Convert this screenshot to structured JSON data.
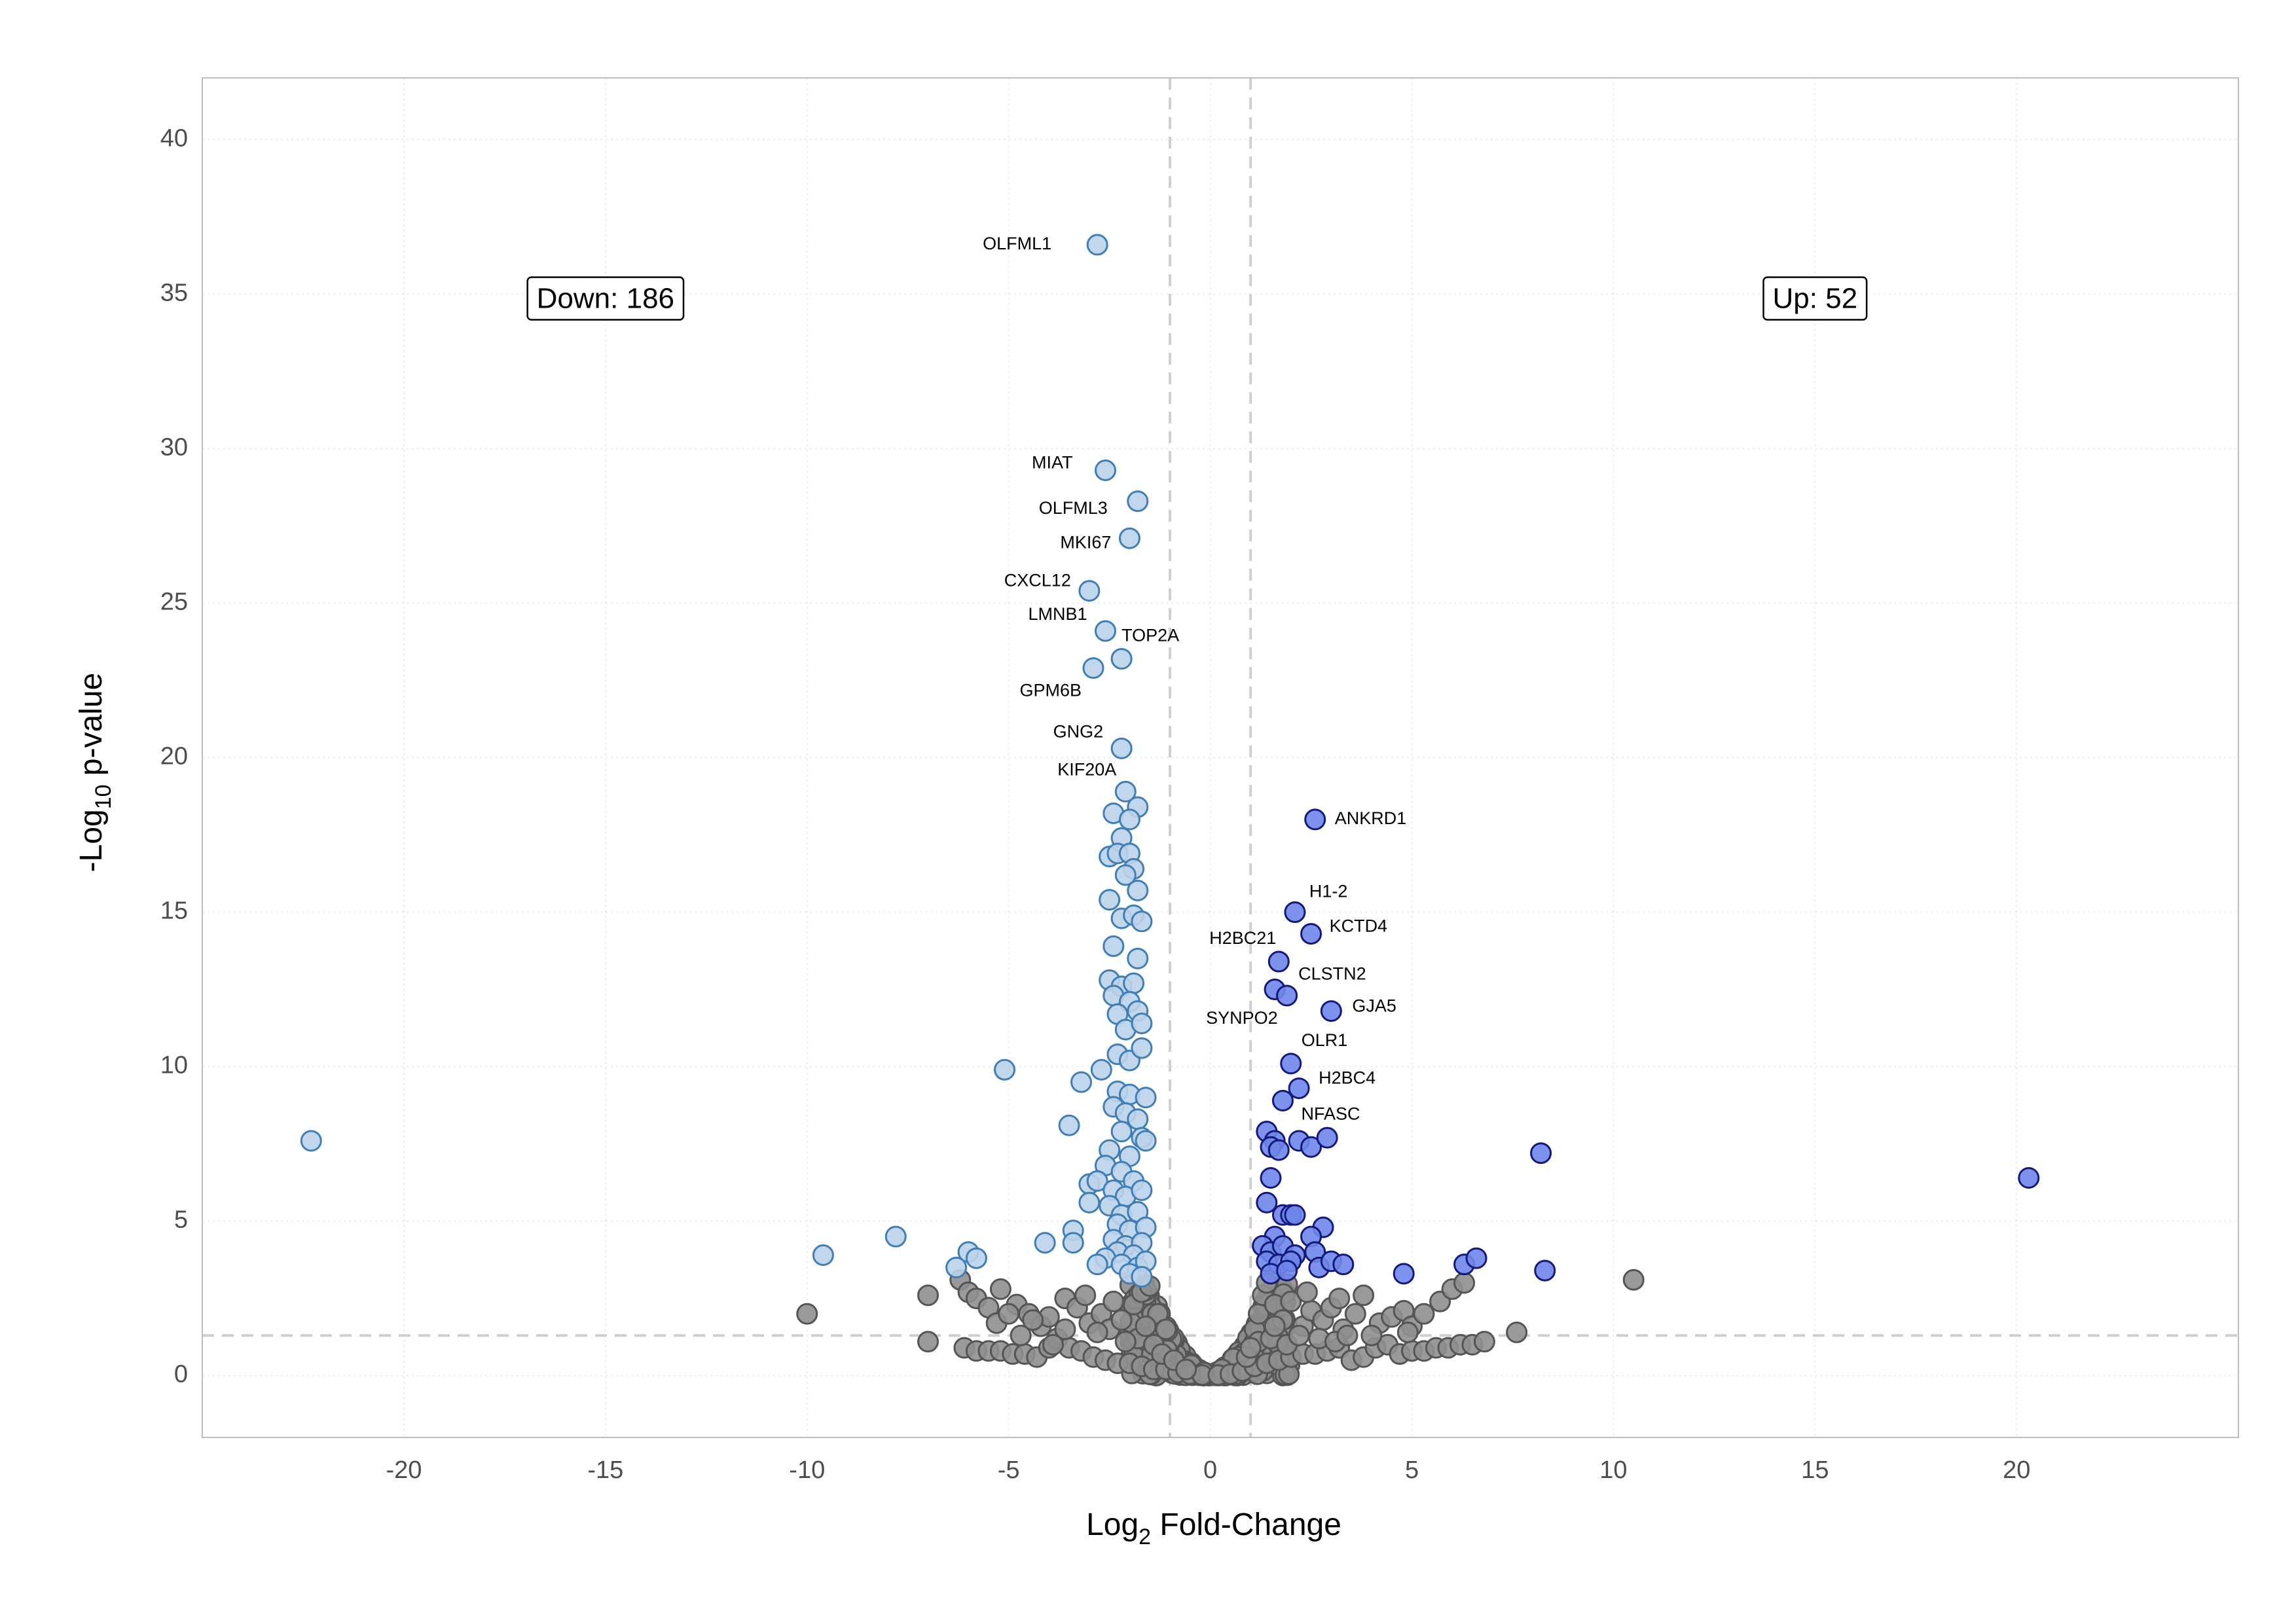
{
  "chart_data": {
    "type": "scatter",
    "xlabel_main": "Log",
    "xlabel_sub": "2",
    "xlabel_rest": " Fold-Change",
    "ylabel_pre": "-Log",
    "ylabel_sub": "10",
    "ylabel_rest": " p-value",
    "xlim": [
      -25,
      25.5
    ],
    "ylim": [
      -2,
      42
    ],
    "xticks": [
      -20,
      -15,
      -10,
      -5,
      0,
      5,
      10,
      15,
      20
    ],
    "yticks": [
      0,
      5,
      10,
      15,
      20,
      25,
      30,
      35,
      40
    ],
    "grid": true,
    "thresholds": {
      "log2fc": [
        -1,
        1
      ],
      "neglog10p": 1.3
    },
    "colors": {
      "down": "#bcd3ea",
      "down_stroke": "#3f7fb5",
      "up": "#6f86ea",
      "up_stroke": "#14197a",
      "ns": "#8f8f8f",
      "ns_stroke": "#555555",
      "grid": "#ebebeb",
      "threshold": "#cfcfcf",
      "panel_border": "#bdbdbd"
    },
    "counts": {
      "down": "Down: 186",
      "up": "Up: 52"
    },
    "down_points": [
      [
        -2.8,
        36.6
      ],
      [
        -2.6,
        29.3
      ],
      [
        -1.8,
        28.3
      ],
      [
        -2.0,
        27.1
      ],
      [
        -3.0,
        25.4
      ],
      [
        -2.6,
        24.1
      ],
      [
        -2.2,
        23.2
      ],
      [
        -2.9,
        22.9
      ],
      [
        -2.2,
        20.3
      ],
      [
        -2.1,
        18.9
      ],
      [
        -2.4,
        18.2
      ],
      [
        -1.8,
        18.4
      ],
      [
        -2.0,
        18.0
      ],
      [
        -2.2,
        17.4
      ],
      [
        -2.5,
        16.8
      ],
      [
        -2.3,
        16.9
      ],
      [
        -2.0,
        16.9
      ],
      [
        -1.9,
        16.4
      ],
      [
        -2.1,
        16.2
      ],
      [
        -1.8,
        15.7
      ],
      [
        -2.5,
        15.4
      ],
      [
        -2.2,
        14.8
      ],
      [
        -1.9,
        14.9
      ],
      [
        -1.7,
        14.7
      ],
      [
        -2.4,
        13.9
      ],
      [
        -1.8,
        13.5
      ],
      [
        -2.5,
        12.8
      ],
      [
        -2.2,
        12.6
      ],
      [
        -1.9,
        12.7
      ],
      [
        -2.4,
        12.3
      ],
      [
        -2.0,
        12.1
      ],
      [
        -2.3,
        11.7
      ],
      [
        -1.8,
        11.8
      ],
      [
        -2.1,
        11.2
      ],
      [
        -1.7,
        11.4
      ],
      [
        -2.3,
        10.4
      ],
      [
        -2.0,
        10.2
      ],
      [
        -1.7,
        10.6
      ],
      [
        -2.7,
        9.9
      ],
      [
        -5.1,
        9.9
      ],
      [
        -3.2,
        9.5
      ],
      [
        -2.3,
        9.2
      ],
      [
        -2.0,
        9.1
      ],
      [
        -1.6,
        9.0
      ],
      [
        -2.4,
        8.7
      ],
      [
        -2.1,
        8.5
      ],
      [
        -1.8,
        8.3
      ],
      [
        -3.5,
        8.1
      ],
      [
        -2.2,
        7.9
      ],
      [
        -1.7,
        7.7
      ],
      [
        -2.5,
        7.3
      ],
      [
        -2.0,
        7.1
      ],
      [
        -1.6,
        7.6
      ],
      [
        -2.6,
        6.8
      ],
      [
        -2.2,
        6.6
      ],
      [
        -1.9,
        6.3
      ],
      [
        -3.0,
        6.2
      ],
      [
        -2.8,
        6.3
      ],
      [
        -2.4,
        6.0
      ],
      [
        -2.1,
        5.8
      ],
      [
        -1.7,
        6.0
      ],
      [
        -3.0,
        5.6
      ],
      [
        -2.5,
        5.5
      ],
      [
        -2.2,
        5.2
      ],
      [
        -1.8,
        5.3
      ],
      [
        -2.3,
        4.9
      ],
      [
        -2.0,
        4.7
      ],
      [
        -1.6,
        4.8
      ],
      [
        -3.4,
        4.7
      ],
      [
        -2.4,
        4.4
      ],
      [
        -2.1,
        4.2
      ],
      [
        -1.7,
        4.3
      ],
      [
        -4.1,
        4.3
      ],
      [
        -3.4,
        4.3
      ],
      [
        -2.3,
        4.0
      ],
      [
        -1.9,
        3.9
      ],
      [
        -2.6,
        3.8
      ],
      [
        -2.8,
        3.6
      ],
      [
        -2.2,
        3.6
      ],
      [
        -1.8,
        3.5
      ],
      [
        -1.6,
        3.7
      ],
      [
        -2.0,
        3.3
      ],
      [
        -1.7,
        3.2
      ],
      [
        -22.3,
        7.6
      ],
      [
        -7.8,
        4.5
      ],
      [
        -9.6,
        3.9
      ],
      [
        -6.0,
        4.0
      ],
      [
        -5.8,
        3.8
      ],
      [
        -6.3,
        3.5
      ]
    ],
    "up_points": [
      [
        2.6,
        18.0
      ],
      [
        2.1,
        15.0
      ],
      [
        2.5,
        14.3
      ],
      [
        1.7,
        13.4
      ],
      [
        1.6,
        12.5
      ],
      [
        1.9,
        12.3
      ],
      [
        3.0,
        11.8
      ],
      [
        2.0,
        10.1
      ],
      [
        2.2,
        9.3
      ],
      [
        1.8,
        8.9
      ],
      [
        1.4,
        7.9
      ],
      [
        1.6,
        7.6
      ],
      [
        1.5,
        7.4
      ],
      [
        1.7,
        7.3
      ],
      [
        2.2,
        7.6
      ],
      [
        2.5,
        7.4
      ],
      [
        2.9,
        7.7
      ],
      [
        1.5,
        6.4
      ],
      [
        1.4,
        5.6
      ],
      [
        1.8,
        5.2
      ],
      [
        2.0,
        5.2
      ],
      [
        2.1,
        5.2
      ],
      [
        2.8,
        4.8
      ],
      [
        1.6,
        4.5
      ],
      [
        2.5,
        4.5
      ],
      [
        1.3,
        4.2
      ],
      [
        1.5,
        4.0
      ],
      [
        1.8,
        4.2
      ],
      [
        2.1,
        3.9
      ],
      [
        1.4,
        3.7
      ],
      [
        1.7,
        3.6
      ],
      [
        2.0,
        3.7
      ],
      [
        2.6,
        4.0
      ],
      [
        2.7,
        3.5
      ],
      [
        3.0,
        3.7
      ],
      [
        3.3,
        3.6
      ],
      [
        1.5,
        3.3
      ],
      [
        1.9,
        3.4
      ],
      [
        4.8,
        3.3
      ],
      [
        6.3,
        3.6
      ],
      [
        6.6,
        3.8
      ],
      [
        8.2,
        7.2
      ],
      [
        8.3,
        3.4
      ],
      [
        20.3,
        6.4
      ]
    ],
    "ns_points": [
      [
        -10.0,
        2.0
      ],
      [
        -7.0,
        2.6
      ],
      [
        -7.0,
        1.1
      ],
      [
        -6.2,
        3.1
      ],
      [
        -6.0,
        2.7
      ],
      [
        -5.8,
        2.5
      ],
      [
        -5.2,
        2.8
      ],
      [
        -5.5,
        2.2
      ],
      [
        -4.8,
        2.3
      ],
      [
        -4.5,
        2.0
      ],
      [
        -4.2,
        1.6
      ],
      [
        -4.0,
        1.9
      ],
      [
        -3.6,
        2.5
      ],
      [
        -3.3,
        2.2
      ],
      [
        -3.0,
        1.7
      ],
      [
        -2.7,
        2.0
      ],
      [
        -2.5,
        1.5
      ],
      [
        -2.2,
        1.8
      ],
      [
        -1.9,
        2.3
      ],
      [
        -1.7,
        2.7
      ],
      [
        -1.5,
        2.9
      ],
      [
        -1.3,
        2.0
      ],
      [
        -1.1,
        1.5
      ],
      [
        -6.1,
        0.9
      ],
      [
        -5.8,
        0.8
      ],
      [
        -5.5,
        0.8
      ],
      [
        -5.2,
        0.8
      ],
      [
        -4.9,
        0.7
      ],
      [
        -4.6,
        0.7
      ],
      [
        -4.3,
        0.6
      ],
      [
        -4.0,
        0.9
      ],
      [
        -3.8,
        1.2
      ],
      [
        -3.5,
        0.9
      ],
      [
        -3.2,
        0.8
      ],
      [
        -2.9,
        0.6
      ],
      [
        -2.6,
        0.5
      ],
      [
        -2.3,
        0.4
      ],
      [
        -2.0,
        0.4
      ],
      [
        -1.7,
        0.3
      ],
      [
        -1.4,
        0.2
      ],
      [
        -1.1,
        0.2
      ],
      [
        -0.8,
        0.1
      ],
      [
        -0.5,
        0.05
      ],
      [
        -0.2,
        0.02
      ],
      [
        -1.8,
        1.2
      ],
      [
        -2.8,
        1.4
      ],
      [
        -3.9,
        1.0
      ],
      [
        -4.7,
        1.3
      ],
      [
        -5.3,
        1.7
      ],
      [
        -1.4,
        1.0
      ],
      [
        -1.2,
        0.7
      ],
      [
        -0.9,
        0.5
      ],
      [
        -0.6,
        0.2
      ],
      [
        -3.1,
        2.6
      ],
      [
        -2.4,
        2.4
      ],
      [
        -1.6,
        1.6
      ],
      [
        -2.1,
        1.1
      ],
      [
        -3.6,
        1.5
      ],
      [
        -4.4,
        1.8
      ],
      [
        -5.0,
        2.0
      ],
      [
        0.2,
        0.02
      ],
      [
        0.5,
        0.05
      ],
      [
        0.8,
        0.15
      ],
      [
        1.1,
        0.3
      ],
      [
        1.4,
        0.4
      ],
      [
        1.7,
        0.5
      ],
      [
        2.0,
        0.6
      ],
      [
        2.3,
        0.7
      ],
      [
        2.6,
        0.7
      ],
      [
        2.9,
        0.8
      ],
      [
        3.2,
        0.9
      ],
      [
        3.5,
        0.5
      ],
      [
        3.8,
        0.6
      ],
      [
        4.1,
        0.9
      ],
      [
        4.4,
        1.0
      ],
      [
        4.7,
        0.7
      ],
      [
        5.0,
        0.8
      ],
      [
        5.3,
        0.8
      ],
      [
        5.6,
        0.9
      ],
      [
        5.9,
        0.9
      ],
      [
        6.2,
        1.0
      ],
      [
        6.5,
        1.0
      ],
      [
        6.8,
        1.1
      ],
      [
        7.6,
        1.4
      ],
      [
        1.1,
        1.5
      ],
      [
        1.2,
        2.0
      ],
      [
        1.3,
        2.6
      ],
      [
        1.4,
        3.0
      ],
      [
        1.6,
        2.3
      ],
      [
        1.8,
        1.8
      ],
      [
        2.0,
        2.4
      ],
      [
        2.3,
        1.6
      ],
      [
        2.5,
        2.1
      ],
      [
        2.8,
        1.8
      ],
      [
        3.0,
        2.2
      ],
      [
        3.3,
        1.5
      ],
      [
        3.6,
        2.0
      ],
      [
        3.8,
        2.6
      ],
      [
        4.2,
        1.7
      ],
      [
        4.5,
        1.9
      ],
      [
        4.8,
        2.1
      ],
      [
        5.0,
        1.6
      ],
      [
        5.3,
        2.0
      ],
      [
        5.7,
        2.4
      ],
      [
        6.0,
        2.8
      ],
      [
        6.3,
        3.0
      ],
      [
        10.5,
        3.1
      ],
      [
        1.2,
        1.1
      ],
      [
        1.5,
        1.2
      ],
      [
        1.9,
        1.0
      ],
      [
        2.2,
        1.3
      ],
      [
        2.7,
        1.2
      ],
      [
        3.1,
        1.1
      ],
      [
        3.4,
        1.3
      ],
      [
        0.9,
        0.6
      ],
      [
        1.0,
        0.9
      ],
      [
        1.6,
        1.6
      ],
      [
        2.4,
        2.7
      ],
      [
        3.2,
        2.5
      ],
      [
        4.0,
        1.3
      ],
      [
        4.9,
        1.4
      ]
    ],
    "labels_down": [
      {
        "x": -2.8,
        "y": 36.6,
        "text": "OLFML1",
        "dx": -70,
        "dy": 0,
        "anchor": "end"
      },
      {
        "x": -2.6,
        "y": 29.3,
        "text": "MIAT",
        "dx": -50,
        "dy": -10,
        "anchor": "end"
      },
      {
        "x": -1.8,
        "y": 28.3,
        "text": "OLFML3",
        "dx": -46,
        "dy": 12,
        "anchor": "end"
      },
      {
        "x": -2.0,
        "y": 27.1,
        "text": "MKI67",
        "dx": -28,
        "dy": 8,
        "anchor": "end"
      },
      {
        "x": -3.0,
        "y": 25.4,
        "text": "CXCL12",
        "dx": -28,
        "dy": -14,
        "anchor": "end"
      },
      {
        "x": -2.6,
        "y": 24.1,
        "text": "LMNB1",
        "dx": -28,
        "dy": -24,
        "anchor": "end"
      },
      {
        "x": -2.2,
        "y": 23.2,
        "text": "TOP2A",
        "dx": 0,
        "dy": -34,
        "anchor": "start"
      },
      {
        "x": -2.9,
        "y": 22.9,
        "text": "GPM6B",
        "dx": -18,
        "dy": 36,
        "anchor": "end"
      },
      {
        "x": -2.2,
        "y": 20.3,
        "text": "GNG2",
        "dx": -28,
        "dy": -24,
        "anchor": "end"
      },
      {
        "x": -2.1,
        "y": 18.9,
        "text": "KIF20A",
        "dx": -14,
        "dy": -32,
        "anchor": "end"
      }
    ],
    "labels_up": [
      {
        "x": 2.6,
        "y": 18.0,
        "text": "ANKRD1",
        "dx": 30,
        "dy": 0,
        "anchor": "start"
      },
      {
        "x": 2.1,
        "y": 15.0,
        "text": "H1-2",
        "dx": 22,
        "dy": -30,
        "anchor": "start"
      },
      {
        "x": 2.5,
        "y": 14.3,
        "text": "KCTD4",
        "dx": 28,
        "dy": -10,
        "anchor": "start"
      },
      {
        "x": 1.7,
        "y": 13.4,
        "text": "H2BC21",
        "dx": -4,
        "dy": -34,
        "anchor": "end"
      },
      {
        "x": 1.6,
        "y": 12.5,
        "text": "CLSTN2",
        "dx": 36,
        "dy": -22,
        "anchor": "start"
      },
      {
        "x": 3.0,
        "y": 11.8,
        "text": "GJA5",
        "dx": 32,
        "dy": -6,
        "anchor": "start"
      },
      {
        "x": 1.9,
        "y": 12.3,
        "text": "SYNPO2",
        "dx": -14,
        "dy": 36,
        "anchor": "end"
      },
      {
        "x": 2.0,
        "y": 10.1,
        "text": "OLR1",
        "dx": 16,
        "dy": -34,
        "anchor": "start"
      },
      {
        "x": 2.2,
        "y": 9.3,
        "text": "H2BC4",
        "dx": 30,
        "dy": -14,
        "anchor": "start"
      },
      {
        "x": 1.8,
        "y": 8.9,
        "text": "NFASC",
        "dx": 28,
        "dy": 22,
        "anchor": "start"
      }
    ]
  }
}
